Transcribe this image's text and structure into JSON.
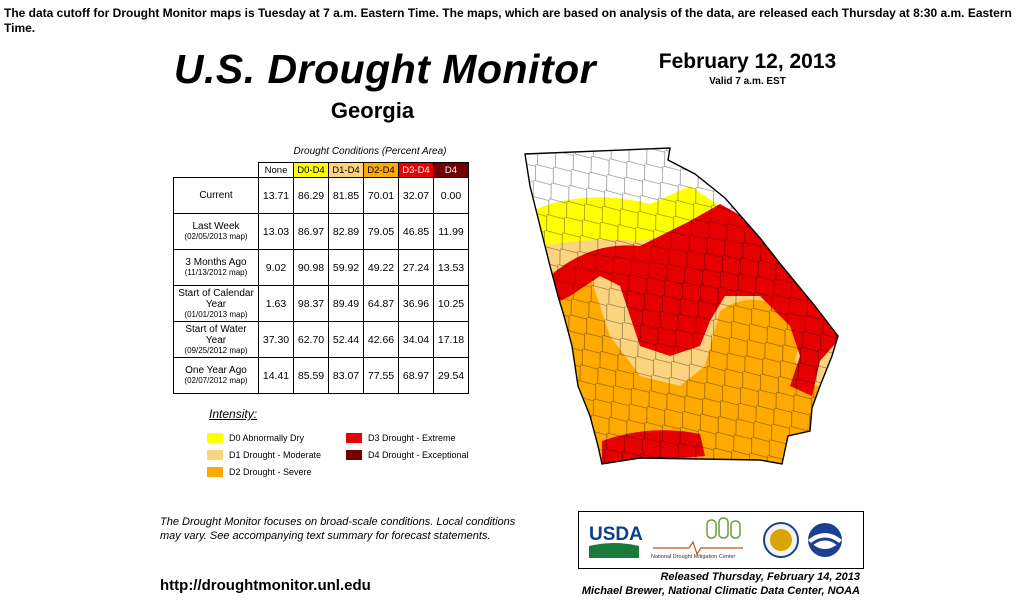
{
  "notice": "The data cutoff for Drought Monitor maps is Tuesday at 7 a.m. Eastern Time. The maps, which are based on analysis of the data, are released each Thursday at 8:30 a.m. Eastern Time.",
  "title": "U.S. Drought Monitor",
  "subtitle": "Georgia",
  "date": "February 12, 2013",
  "valid": "Valid 7 a.m. EST",
  "table": {
    "caption": "Drought Conditions (Percent Area)",
    "columns": [
      "None",
      "D0-D4",
      "D1-D4",
      "D2-D4",
      "D3-D4",
      "D4"
    ],
    "column_colors": [
      "#ffffff",
      "#ffff00",
      "#fcd37f",
      "#ffaa00",
      "#e60000",
      "#730000"
    ],
    "rows": [
      {
        "label": "Current",
        "sub": "",
        "values": [
          "13.71",
          "86.29",
          "81.85",
          "70.01",
          "32.07",
          "0.00"
        ]
      },
      {
        "label": "Last Week",
        "sub": "(02/05/2013 map)",
        "values": [
          "13.03",
          "86.97",
          "82.89",
          "79.05",
          "46.85",
          "11.99"
        ]
      },
      {
        "label": "3 Months Ago",
        "sub": "(11/13/2012 map)",
        "values": [
          "9.02",
          "90.98",
          "59.92",
          "49.22",
          "27.24",
          "13.53"
        ]
      },
      {
        "label": "Start of Calendar Year",
        "sub": "(01/01/2013 map)",
        "values": [
          "1.63",
          "98.37",
          "89.49",
          "64.87",
          "36.96",
          "10.25"
        ]
      },
      {
        "label": "Start of Water Year",
        "sub": "(09/25/2012 map)",
        "values": [
          "37.30",
          "62.70",
          "52.44",
          "42.66",
          "34.04",
          "17.18"
        ]
      },
      {
        "label": "One Year Ago",
        "sub": "(02/07/2012 map)",
        "values": [
          "14.41",
          "85.59",
          "83.07",
          "77.55",
          "68.97",
          "29.54"
        ]
      }
    ]
  },
  "intensity": {
    "title": "Intensity:",
    "items": [
      {
        "label": "D0 Abnormally Dry",
        "color": "#ffff00"
      },
      {
        "label": "D1 Drought - Moderate",
        "color": "#fcd37f"
      },
      {
        "label": "D2 Drought - Severe",
        "color": "#ffaa00"
      },
      {
        "label": "D3 Drought - Extreme",
        "color": "#e60000"
      },
      {
        "label": "D4 Drought - Exceptional",
        "color": "#730000"
      }
    ]
  },
  "note": "The Drought Monitor focuses on broad-scale conditions. Local conditions may vary. See accompanying text summary for forecast statements.",
  "url": "http://droughtmonitor.unl.edu",
  "released": "Released Thursday, February 14, 2013",
  "author": "Michael Brewer, National Climatic Data Center, NOAA",
  "logos": {
    "usda": "USDA",
    "ndmc": "National Drought Mitigation Center"
  }
}
